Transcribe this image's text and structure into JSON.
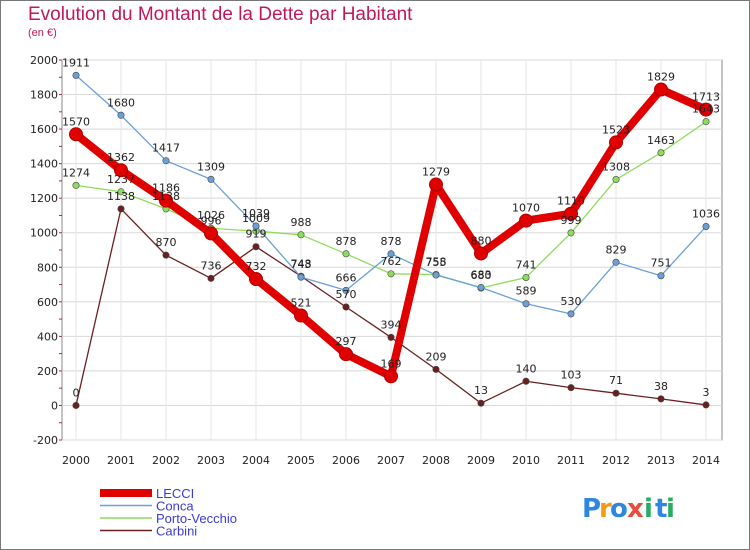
{
  "chart_data": {
    "type": "line",
    "title": "Evolution du Montant de la Dette par Habitant",
    "subtitle": "(en €)",
    "xlabel": "",
    "ylabel": "",
    "ylim": [
      -200,
      2000
    ],
    "yticks": [
      -200,
      0,
      200,
      400,
      600,
      800,
      1000,
      1200,
      1400,
      1600,
      1800,
      2000
    ],
    "x": [
      "2000",
      "2001",
      "2002",
      "2003",
      "2004",
      "2005",
      "2006",
      "2007",
      "2008",
      "2009",
      "2010",
      "2011",
      "2012",
      "2013",
      "2014"
    ],
    "legend_position": "bottom-left",
    "series": [
      {
        "name": "LECCI",
        "color": "#e00000",
        "values": [
          1570,
          1362,
          1186,
          996,
          732,
          521,
          297,
          169,
          1279,
          880,
          1070,
          1110,
          1523,
          1829,
          1713
        ]
      },
      {
        "name": "Conca",
        "color": "#6aa0d8",
        "values": [
          1911,
          1680,
          1417,
          1309,
          1039,
          743,
          666,
          878,
          755,
          683,
          589,
          530,
          829,
          751,
          1036
        ]
      },
      {
        "name": "Porto-Vecchio",
        "color": "#8edc5c",
        "values": [
          1274,
          1237,
          1138,
          1026,
          1009,
          988,
          878,
          762,
          758,
          680,
          741,
          999,
          1308,
          1463,
          1643
        ]
      },
      {
        "name": "Carbini",
        "color": "#6b1f1f",
        "values": [
          0,
          1138,
          870,
          736,
          919,
          748,
          570,
          394,
          209,
          13,
          140,
          103,
          71,
          38,
          3
        ]
      }
    ]
  },
  "brand": {
    "letters": [
      "P",
      "r",
      "o",
      "x",
      "i",
      "t",
      "i"
    ],
    "colors": [
      "#2e86de",
      "#f39c12",
      "#2e86de",
      "#e74c3c",
      "#27ae60",
      "#2e86de",
      "#27ae60"
    ]
  }
}
